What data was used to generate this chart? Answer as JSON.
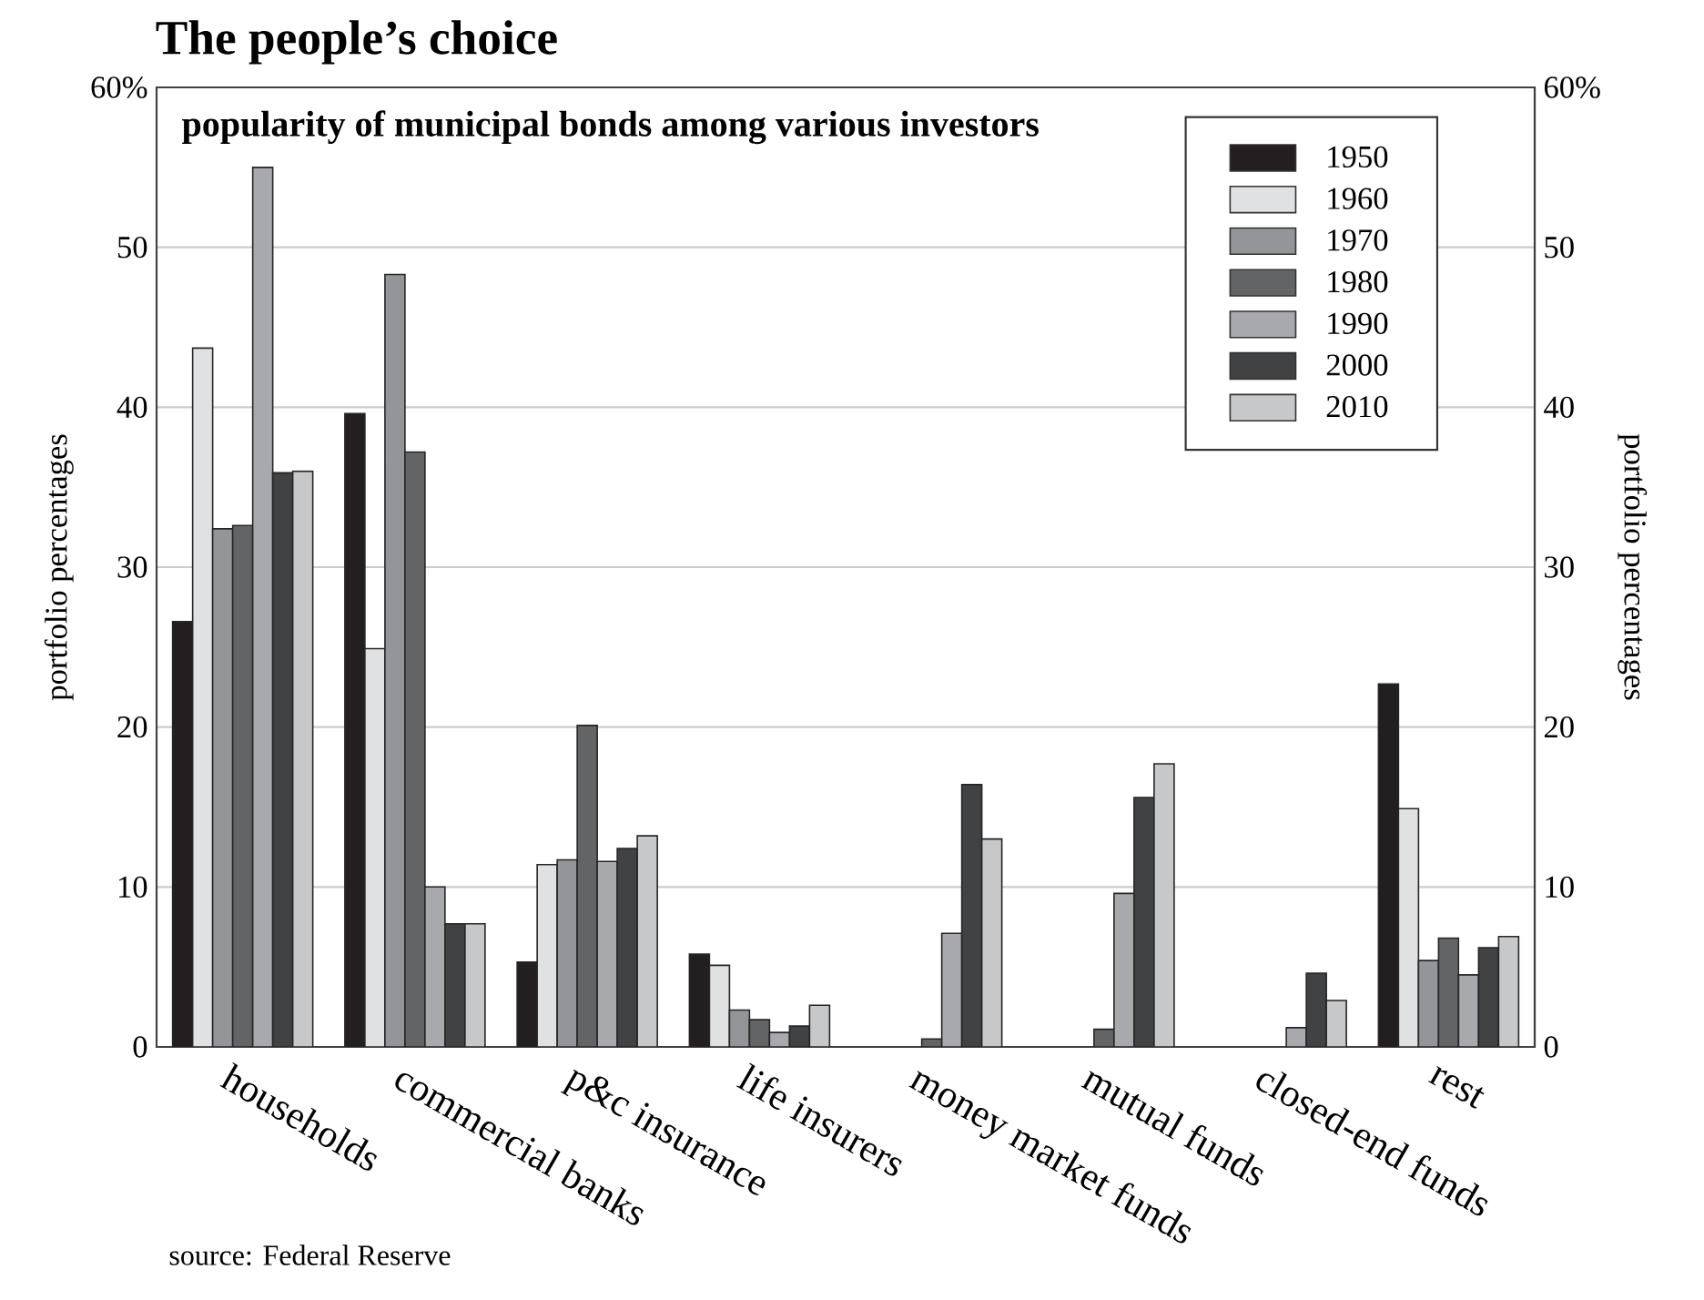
{
  "chart_data": {
    "type": "bar",
    "title": "The people’s choice",
    "subtitle": "popularity of municipal bonds among various investors",
    "ylabel": "portfolio percentages",
    "y2label": "portfolio percentages",
    "categories": [
      "households",
      "commercial banks",
      "p&c insurance",
      "life insurers",
      "money market funds",
      "mutual funds",
      "closed-end funds",
      "rest"
    ],
    "series": [
      {
        "name": "1950",
        "color": "#231f20",
        "values": [
          26.6,
          39.6,
          5.3,
          5.8,
          null,
          null,
          null,
          22.7
        ]
      },
      {
        "name": "1960",
        "color": "#e0e1e2",
        "values": [
          43.7,
          24.9,
          11.4,
          5.1,
          null,
          null,
          null,
          14.9
        ]
      },
      {
        "name": "1970",
        "color": "#939598",
        "values": [
          32.4,
          48.3,
          11.7,
          2.3,
          null,
          null,
          null,
          5.4
        ]
      },
      {
        "name": "1980",
        "color": "#636466",
        "values": [
          32.6,
          37.2,
          20.1,
          1.7,
          0.5,
          1.1,
          null,
          6.8
        ]
      },
      {
        "name": "1990",
        "color": "#a7a9ac",
        "values": [
          55.0,
          10.0,
          11.6,
          0.9,
          7.1,
          9.6,
          1.2,
          4.5
        ]
      },
      {
        "name": "2000",
        "color": "#414244",
        "values": [
          35.9,
          7.7,
          12.4,
          1.3,
          16.4,
          15.6,
          4.6,
          6.2
        ]
      },
      {
        "name": "2010",
        "color": "#c7c8ca",
        "values": [
          36.0,
          7.7,
          13.2,
          2.6,
          13.0,
          17.7,
          2.9,
          6.9
        ]
      }
    ],
    "ylim": [
      0,
      60
    ],
    "yticks": [
      0,
      10,
      20,
      30,
      40,
      50,
      {
        "value": 60,
        "label": "60%"
      }
    ],
    "y2lim": [
      0,
      60
    ],
    "y2ticks": [
      0,
      10,
      20,
      30,
      40,
      50,
      {
        "value": 60,
        "label": "60%"
      }
    ],
    "grid": "y",
    "legend": "top right",
    "annotations": [
      "source: Federal Reserve"
    ]
  }
}
